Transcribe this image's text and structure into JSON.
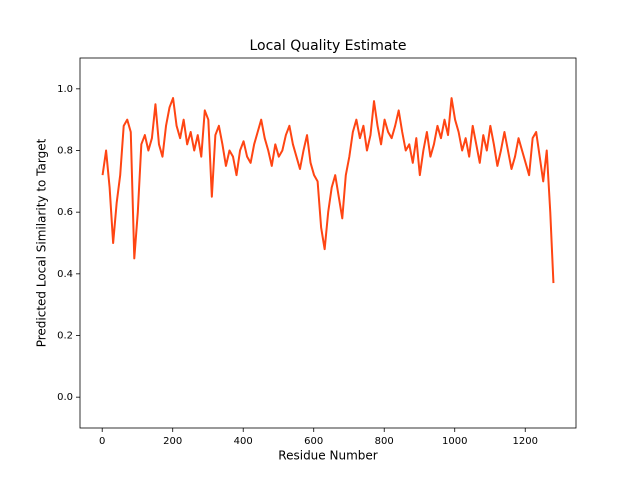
{
  "chart_data": {
    "type": "line",
    "title": "Local Quality Estimate",
    "x_label": "Residue Number",
    "y_label": "Predicted Local Similarity to Target",
    "x": [
      1,
      11,
      21,
      31,
      41,
      51,
      61,
      71,
      81,
      91,
      101,
      111,
      121,
      131,
      141,
      151,
      161,
      171,
      181,
      191,
      201,
      211,
      221,
      231,
      241,
      251,
      261,
      271,
      281,
      291,
      301,
      311,
      321,
      331,
      341,
      351,
      361,
      371,
      381,
      391,
      401,
      411,
      421,
      431,
      441,
      451,
      461,
      471,
      481,
      491,
      501,
      511,
      521,
      531,
      541,
      551,
      561,
      571,
      581,
      591,
      601,
      611,
      621,
      631,
      641,
      651,
      661,
      671,
      681,
      691,
      701,
      711,
      721,
      731,
      741,
      751,
      761,
      771,
      781,
      791,
      801,
      811,
      821,
      831,
      841,
      851,
      861,
      871,
      881,
      891,
      901,
      911,
      921,
      931,
      941,
      951,
      961,
      971,
      981,
      991,
      1001,
      1011,
      1021,
      1031,
      1041,
      1051,
      1061,
      1071,
      1081,
      1091,
      1101,
      1111,
      1121,
      1131,
      1141,
      1151,
      1161,
      1171,
      1181,
      1191,
      1201,
      1211,
      1221,
      1231,
      1241,
      1251,
      1261,
      1271,
      1280
    ],
    "series": [
      {
        "color": "#ff4513",
        "values": [
          0.72,
          0.8,
          0.68,
          0.5,
          0.63,
          0.72,
          0.88,
          0.9,
          0.86,
          0.45,
          0.6,
          0.82,
          0.85,
          0.8,
          0.84,
          0.95,
          0.82,
          0.78,
          0.88,
          0.94,
          0.97,
          0.88,
          0.84,
          0.9,
          0.82,
          0.86,
          0.8,
          0.85,
          0.78,
          0.93,
          0.9,
          0.65,
          0.85,
          0.88,
          0.82,
          0.75,
          0.8,
          0.78,
          0.72,
          0.8,
          0.83,
          0.78,
          0.76,
          0.82,
          0.86,
          0.9,
          0.84,
          0.8,
          0.75,
          0.82,
          0.78,
          0.8,
          0.85,
          0.88,
          0.82,
          0.78,
          0.74,
          0.8,
          0.85,
          0.76,
          0.72,
          0.7,
          0.55,
          0.48,
          0.6,
          0.68,
          0.72,
          0.65,
          0.58,
          0.72,
          0.78,
          0.86,
          0.9,
          0.84,
          0.88,
          0.8,
          0.85,
          0.96,
          0.88,
          0.82,
          0.9,
          0.86,
          0.84,
          0.88,
          0.93,
          0.86,
          0.8,
          0.82,
          0.76,
          0.84,
          0.72,
          0.8,
          0.86,
          0.78,
          0.82,
          0.88,
          0.84,
          0.9,
          0.85,
          0.97,
          0.9,
          0.86,
          0.8,
          0.84,
          0.78,
          0.88,
          0.82,
          0.76,
          0.85,
          0.8,
          0.88,
          0.82,
          0.75,
          0.8,
          0.86,
          0.8,
          0.74,
          0.78,
          0.84,
          0.8,
          0.76,
          0.72,
          0.84,
          0.86,
          0.78,
          0.7,
          0.8,
          0.6,
          0.37
        ]
      }
    ],
    "xlim": [
      -63,
      1344
    ],
    "ylim": [
      -0.1,
      1.1
    ],
    "xticks": [
      0,
      200,
      400,
      600,
      800,
      1000,
      1200
    ],
    "yticks": [
      {
        "value": 0,
        "label": "0.0"
      },
      0.2,
      0.4,
      0.6,
      0.8,
      {
        "value": 1,
        "label": "1.0"
      }
    ]
  }
}
